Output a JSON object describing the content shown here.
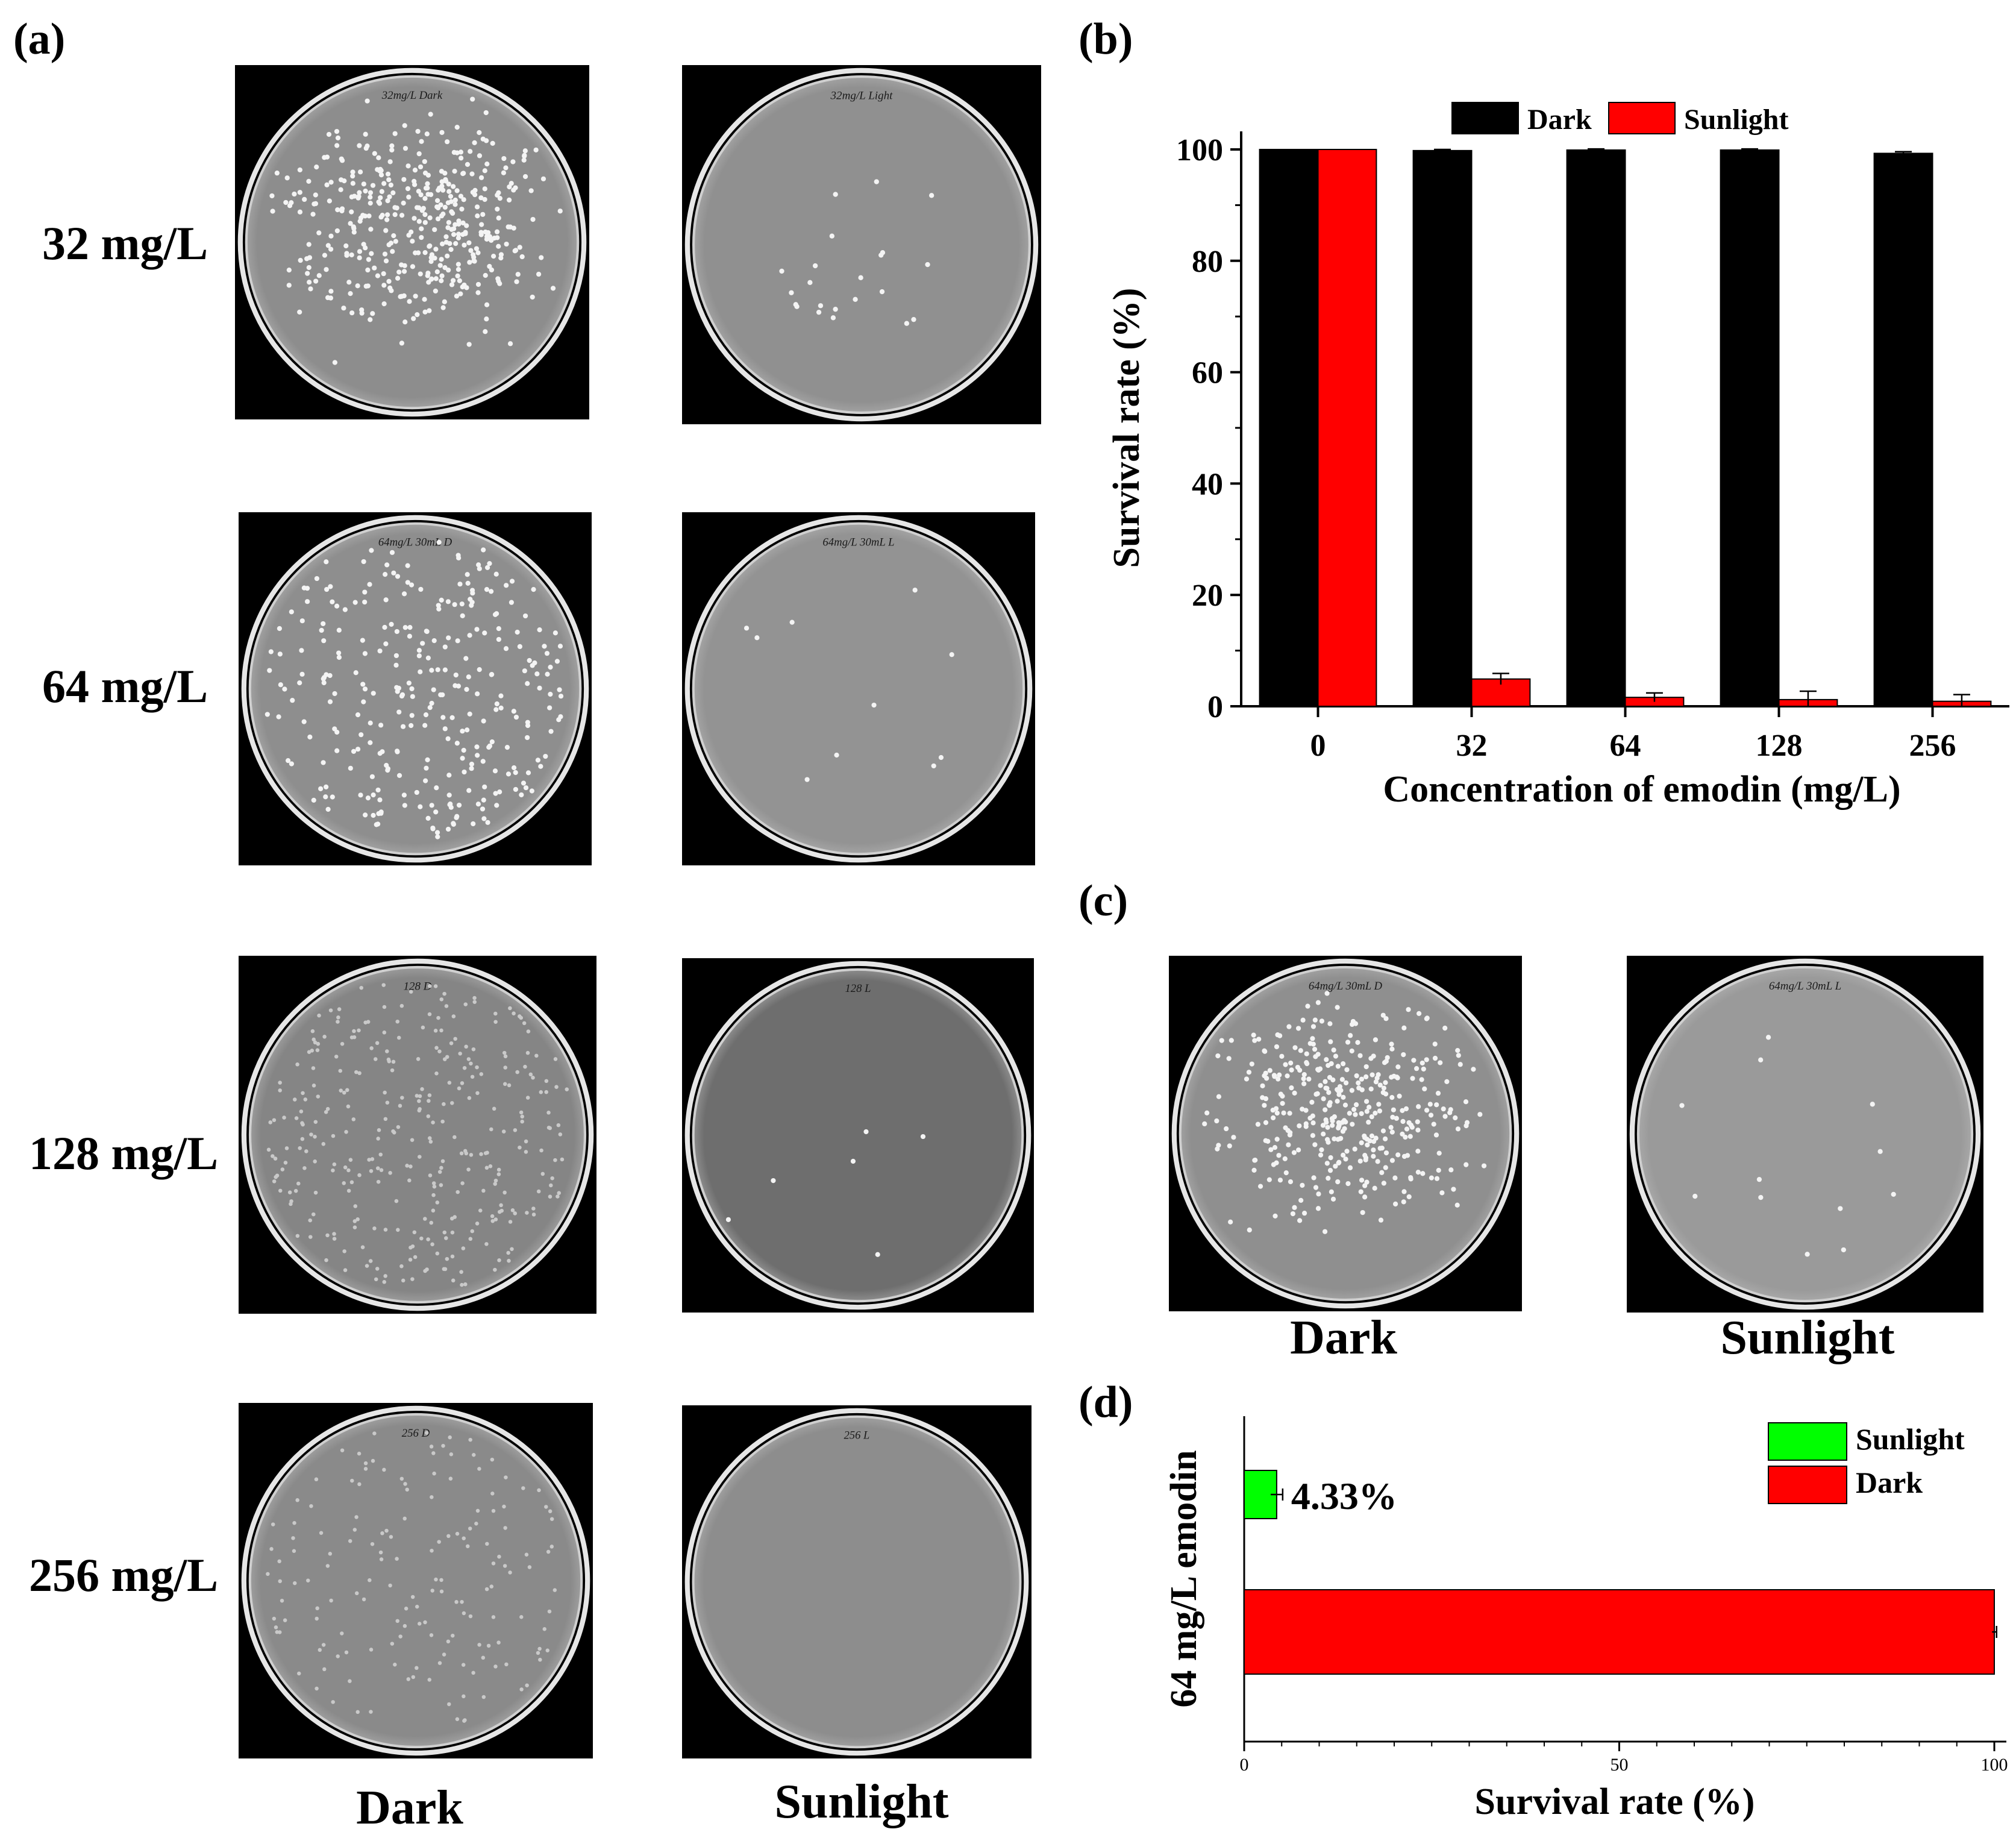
{
  "panels": {
    "a": "(a)",
    "b": "(b)",
    "c": "(c)",
    "d": "(d)"
  },
  "panel_a": {
    "row_labels": [
      "32 mg/L",
      "64 mg/L",
      "128 mg/L",
      "256 mg/L"
    ],
    "col_labels": [
      "Dark",
      "Sunlight"
    ],
    "plates": [
      {
        "row": "32 mg/L",
        "condition": "Dark",
        "handwriting": "32mg/L Dark",
        "colonies": 420,
        "background": "#8d8d8d",
        "colony_spread": "dense-center"
      },
      {
        "row": "32 mg/L",
        "condition": "Sunlight",
        "handwriting": "32mg/L Light",
        "colonies": 22,
        "background": "#909090",
        "colony_spread": "center"
      },
      {
        "row": "64 mg/L",
        "condition": "Dark",
        "handwriting": "64mg/L 30mL D",
        "colonies": 300,
        "background": "#8e8e8e",
        "colony_spread": "wide"
      },
      {
        "row": "64 mg/L",
        "condition": "Sunlight",
        "handwriting": "64mg/L 30mL L",
        "colonies": 10,
        "background": "#939393",
        "colony_spread": "sparse"
      },
      {
        "row": "128 mg/L",
        "condition": "Dark",
        "handwriting": "128 D",
        "colonies": 330,
        "background": "#858585",
        "colony_spread": "faint-wide"
      },
      {
        "row": "128 mg/L",
        "condition": "Sunlight",
        "handwriting": "128 L",
        "colonies": 6,
        "background": "#6e6e6e",
        "colony_spread": "sparse"
      },
      {
        "row": "256 mg/L",
        "condition": "Dark",
        "handwriting": "256 D",
        "colonies": 160,
        "background": "#8a8a8a",
        "colony_spread": "faint-wide"
      },
      {
        "row": "256 mg/L",
        "condition": "Sunlight",
        "handwriting": "256 L",
        "colonies": 0,
        "background": "#8d8d8d",
        "colony_spread": "none"
      }
    ]
  },
  "panel_c": {
    "col_labels": [
      "Dark",
      "Sunlight"
    ],
    "plates": [
      {
        "condition": "Dark",
        "handwriting": "64mg/L 30mL D",
        "colonies": 380,
        "background": "#8f8f8f",
        "colony_spread": "dense-center"
      },
      {
        "condition": "Sunlight",
        "handwriting": "64mg/L 30mL L",
        "colonies": 12,
        "background": "#9a9a9a",
        "colony_spread": "sparse"
      }
    ]
  },
  "chart_data": [
    {
      "panel": "b",
      "type": "bar",
      "categories": [
        "0",
        "32",
        "64",
        "128",
        "256"
      ],
      "series": [
        {
          "name": "Dark",
          "color": "#000000",
          "values": [
            100,
            99.8,
            99.9,
            99.9,
            99.3
          ],
          "errors": [
            0,
            0.2,
            0.2,
            0.2,
            0.3
          ]
        },
        {
          "name": "Sunlight",
          "color": "#ff0000",
          "values": [
            100,
            4.9,
            1.6,
            1.2,
            0.9
          ],
          "errors": [
            0,
            1.0,
            0.8,
            1.5,
            1.2
          ]
        }
      ],
      "xlabel": "Concentration of emodin (mg/L)",
      "ylabel": "Survival rate (%)",
      "ylim": [
        0,
        100
      ],
      "yticks": [
        0,
        20,
        40,
        60,
        80,
        100
      ],
      "legend": "top-center",
      "grid": false
    },
    {
      "panel": "d",
      "type": "bar",
      "orientation": "horizontal",
      "category_label": "64 mg/L emodin",
      "series": [
        {
          "name": "Sunlight",
          "color": "#00ff00",
          "value": 4.33,
          "error": 0.8,
          "label": "4.33%"
        },
        {
          "name": "Dark",
          "color": "#ff0000",
          "value": 100,
          "error": 0.3
        }
      ],
      "xlabel": "Survival rate (%)",
      "xlim": [
        0,
        100
      ],
      "xticks": [
        0,
        50,
        100
      ],
      "legend": "top-right",
      "grid": false
    }
  ]
}
